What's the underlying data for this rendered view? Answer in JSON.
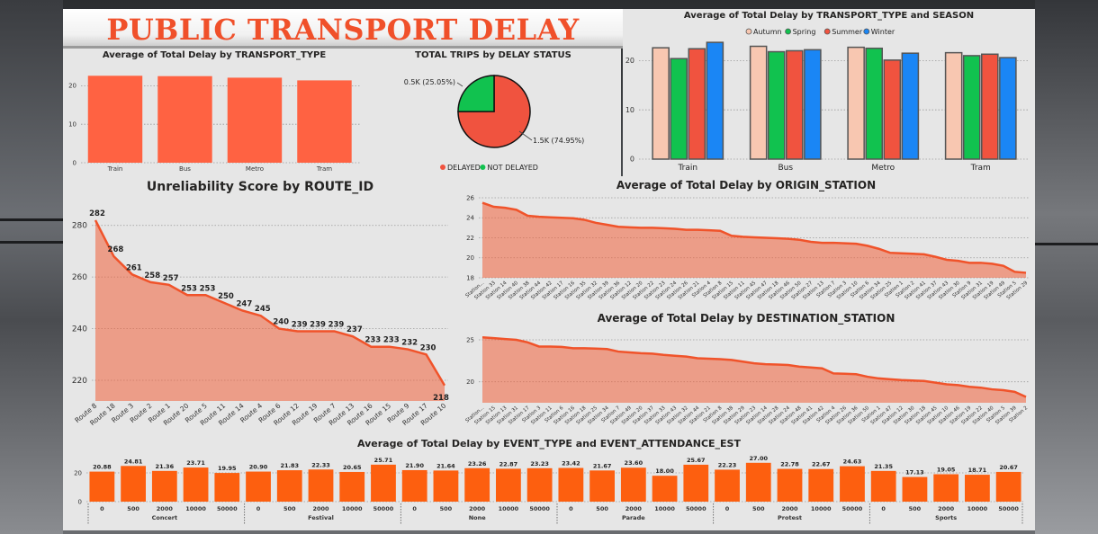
{
  "dashboard": {
    "title": "PUBLIC TRANSPORT DELAY"
  },
  "colors": {
    "accent": "#ff6242",
    "orange": "#fd5f0f",
    "autumn": "#f8c7b1",
    "spring": "#11c24f",
    "summer": "#f0533f",
    "winter": "#1a86f5",
    "delayed": "#f0533f",
    "not_delayed": "#11c24f"
  },
  "chart_data": [
    {
      "id": "by_transport_type",
      "type": "bar",
      "title": "Average of Total Delay by TRANSPORT_TYPE",
      "categories": [
        "Train",
        "Bus",
        "Metro",
        "Tram"
      ],
      "values": [
        22.6,
        22.5,
        22.1,
        21.4
      ],
      "ylim": [
        0,
        25
      ],
      "yticks": [
        0,
        10,
        20
      ],
      "grid": true
    },
    {
      "id": "trips_by_delay_status",
      "type": "pie",
      "title": "TOTAL TRIPS by DELAY STATUS",
      "slices": [
        {
          "name": "DELAYED",
          "value": 74.95,
          "label": "1.5K (74.95%)"
        },
        {
          "name": "NOT DELAYED",
          "value": 25.05,
          "label": "0.5K (25.05%)"
        }
      ],
      "legend": "bottom"
    },
    {
      "id": "by_transport_type_season",
      "type": "bar",
      "title": "Average of Total Delay by TRANSPORT_TYPE and SEASON",
      "categories": [
        "Train",
        "Bus",
        "Metro",
        "Tram"
      ],
      "series": [
        {
          "name": "Autumn",
          "values": [
            22.6,
            22.9,
            22.7,
            21.6
          ]
        },
        {
          "name": "Spring",
          "values": [
            20.4,
            21.8,
            22.5,
            21.0
          ]
        },
        {
          "name": "Summer",
          "values": [
            22.4,
            22.0,
            20.1,
            21.3
          ]
        },
        {
          "name": "Winter",
          "values": [
            23.7,
            22.2,
            21.5,
            20.6
          ]
        }
      ],
      "ylim": [
        0,
        25
      ],
      "yticks": [
        0,
        10,
        20
      ],
      "legend": "top",
      "grid": true
    },
    {
      "id": "unreliability_by_route",
      "type": "area",
      "title": "Unreliability Score by ROUTE_ID",
      "categories": [
        "Route 8",
        "Route 18",
        "Route 3",
        "Route 2",
        "Route 1",
        "Route 20",
        "Route 5",
        "Route 11",
        "Route 14",
        "Route 4",
        "Route 6",
        "Route 12",
        "Route 19",
        "Route 7",
        "Route 13",
        "Route 16",
        "Route 15",
        "Route 9",
        "Route 17",
        "Route 10"
      ],
      "values": [
        282,
        268,
        261,
        258,
        257,
        253,
        253,
        250,
        247,
        245,
        240,
        239,
        239,
        239,
        237,
        233,
        233,
        232,
        230,
        218
      ],
      "ylim": [
        212,
        290
      ],
      "yticks": [
        220,
        240,
        260,
        280
      ],
      "grid": true
    },
    {
      "id": "by_origin_station",
      "type": "area",
      "title": "Average of Total Delay by ORIGIN_STATION",
      "categories": [
        "Station...",
        "Station 33",
        "Station 14",
        "Station 40",
        "Station 38",
        "Station 44",
        "Station 42",
        "Station 17",
        "Station 16",
        "Station 35",
        "Station 32",
        "Station 39",
        "Station 36",
        "Station 12",
        "Station 20",
        "Station 22",
        "Station 23",
        "Station 24",
        "Station 26",
        "Station 21",
        "Station 4",
        "Station 8",
        "Station 15",
        "Station 11",
        "Station 45",
        "Station 47",
        "Station 18",
        "Station 46",
        "Station 50",
        "Station 27",
        "Station 13",
        "Station 7",
        "Station 3",
        "Station 10",
        "Station 6",
        "Station 34",
        "Station 25",
        "Station 1",
        "Station 2",
        "Station 41",
        "Station 37",
        "Station 43",
        "Station 30",
        "Station 9",
        "Station 31",
        "Station 19",
        "Station 49",
        "Station 5",
        "Station 29"
      ],
      "values": [
        25.5,
        25.1,
        25.0,
        24.8,
        24.2,
        24.1,
        24.05,
        24.0,
        23.95,
        23.8,
        23.5,
        23.3,
        23.1,
        23.05,
        23.0,
        23.0,
        22.95,
        22.9,
        22.8,
        22.8,
        22.75,
        22.7,
        22.2,
        22.1,
        22.05,
        22.0,
        21.95,
        21.9,
        21.8,
        21.6,
        21.5,
        21.5,
        21.45,
        21.4,
        21.2,
        20.9,
        20.5,
        20.45,
        20.4,
        20.35,
        20.1,
        19.8,
        19.7,
        19.5,
        19.5,
        19.4,
        19.2,
        18.6,
        18.5
      ],
      "ylim": [
        18,
        26
      ],
      "yticks": [
        18,
        20,
        22,
        24,
        26
      ],
      "grid": true
    },
    {
      "id": "by_destination_station",
      "type": "area",
      "title": "Average of Total Delay by DESTINATION_STATION",
      "categories": [
        "Station...",
        "Station 15",
        "Station 13",
        "Station 31",
        "Station 17",
        "Station 3",
        "Station 11",
        "Station 6",
        "Station 16",
        "Station 18",
        "Station 25",
        "Station 34",
        "Station 7",
        "Station 49",
        "Station 20",
        "Station 37",
        "Station 33",
        "Station 43",
        "Station 32",
        "Station 44",
        "Station 21",
        "Station 8",
        "Station 38",
        "Station 29",
        "Station 23",
        "Station 14",
        "Station 28",
        "Station 24",
        "Station 48",
        "Station 41",
        "Station 42",
        "Station 4",
        "Station 26",
        "Station 36",
        "Station 50",
        "Station 1",
        "Station 47",
        "Station 12",
        "Station 30",
        "Station 18",
        "Station 45",
        "Station 10",
        "Station 46",
        "Station 19",
        "Station 22",
        "Station 40",
        "Station 5",
        "Station 39",
        "Station 2"
      ],
      "values": [
        25.3,
        25.2,
        25.1,
        25.0,
        24.7,
        24.2,
        24.2,
        24.15,
        24.0,
        24.0,
        23.95,
        23.9,
        23.6,
        23.5,
        23.4,
        23.35,
        23.2,
        23.1,
        23.0,
        22.8,
        22.75,
        22.7,
        22.6,
        22.4,
        22.2,
        22.1,
        22.05,
        22.0,
        21.8,
        21.7,
        21.6,
        21.0,
        20.95,
        20.9,
        20.6,
        20.4,
        20.3,
        20.2,
        20.15,
        20.1,
        19.9,
        19.7,
        19.6,
        19.4,
        19.3,
        19.1,
        19.0,
        18.8,
        18.2
      ],
      "ylim": [
        17.5,
        26.5
      ],
      "yticks": [
        20,
        25
      ],
      "grid": true
    },
    {
      "id": "by_event_attendance",
      "type": "bar",
      "title": "Average of Total Delay by EVENT_TYPE and EVENT_ATTENDANCE_EST",
      "groups": [
        {
          "name": "Concert",
          "categories": [
            "0",
            "500",
            "2000",
            "10000",
            "50000"
          ],
          "values": [
            20.88,
            24.81,
            21.36,
            23.71,
            19.95
          ],
          "labels": [
            "20.88",
            "24.81",
            "21.36",
            "23.71",
            "19.95"
          ]
        },
        {
          "name": "Festival",
          "categories": [
            "0",
            "500",
            "2000",
            "10000",
            "50000"
          ],
          "values": [
            20.9,
            21.83,
            22.33,
            20.65,
            25.71
          ],
          "labels": [
            "20.90",
            "21.83",
            "22.33",
            "20.65",
            "25.71"
          ]
        },
        {
          "name": "None",
          "categories": [
            "0",
            "500",
            "2000",
            "10000",
            "50000"
          ],
          "values": [
            21.9,
            21.64,
            23.26,
            22.87,
            23.23
          ],
          "labels": [
            "21.90",
            "21.64",
            "23.26",
            "22.87",
            "23.23"
          ]
        },
        {
          "name": "Parade",
          "categories": [
            "0",
            "500",
            "2000",
            "10000",
            "50000"
          ],
          "values": [
            23.42,
            21.67,
            23.6,
            18.0,
            25.67
          ],
          "labels": [
            "23.42",
            "21.67",
            "23.60",
            "18.00",
            "25.67"
          ]
        },
        {
          "name": "Protest",
          "categories": [
            "0",
            "500",
            "2000",
            "10000",
            "50000"
          ],
          "values": [
            22.23,
            27.0,
            22.78,
            22.67,
            24.63
          ],
          "labels": [
            "22.23",
            "27.00",
            "22.78",
            "22.67",
            "24.63"
          ]
        },
        {
          "name": "Sports",
          "categories": [
            "0",
            "500",
            "2000",
            "10000",
            "50000"
          ],
          "values": [
            21.35,
            17.13,
            19.05,
            18.71,
            20.67
          ],
          "labels": [
            "21.35",
            "17.13",
            "19.05",
            "18.71",
            "20.67"
          ]
        }
      ],
      "ylim": [
        0,
        30
      ],
      "yticks": [
        0,
        20
      ],
      "grid": true
    }
  ]
}
